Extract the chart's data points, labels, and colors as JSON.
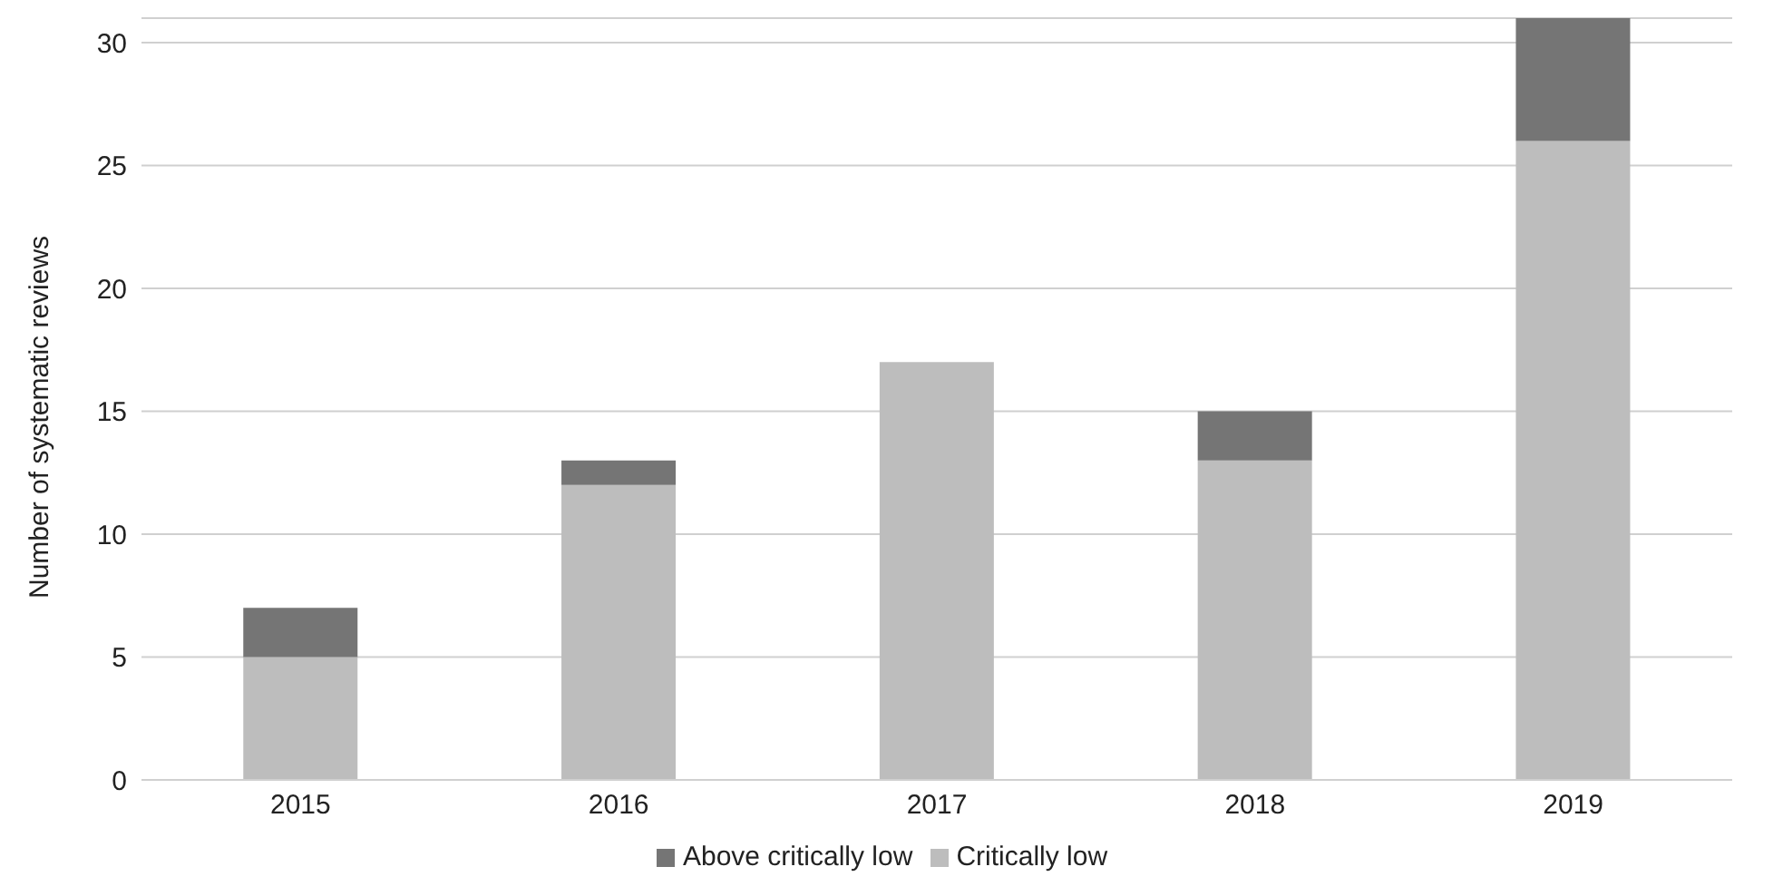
{
  "chart_data": {
    "type": "bar",
    "stacked": true,
    "ylabel": "Number of systematic reviews",
    "categories": [
      "2015",
      "2016",
      "2017",
      "2018",
      "2019"
    ],
    "series": [
      {
        "name": "Critically low",
        "color": "#bdbdbd",
        "values": [
          5,
          12,
          17,
          13,
          26
        ]
      },
      {
        "name": "Above critically low",
        "color": "#757575",
        "values": [
          2,
          1,
          0,
          2,
          5
        ]
      }
    ],
    "ylim": [
      0,
      31
    ],
    "yticks": [
      0,
      5,
      10,
      15,
      20,
      25,
      30
    ],
    "grid": "y",
    "legend": "bottom"
  }
}
